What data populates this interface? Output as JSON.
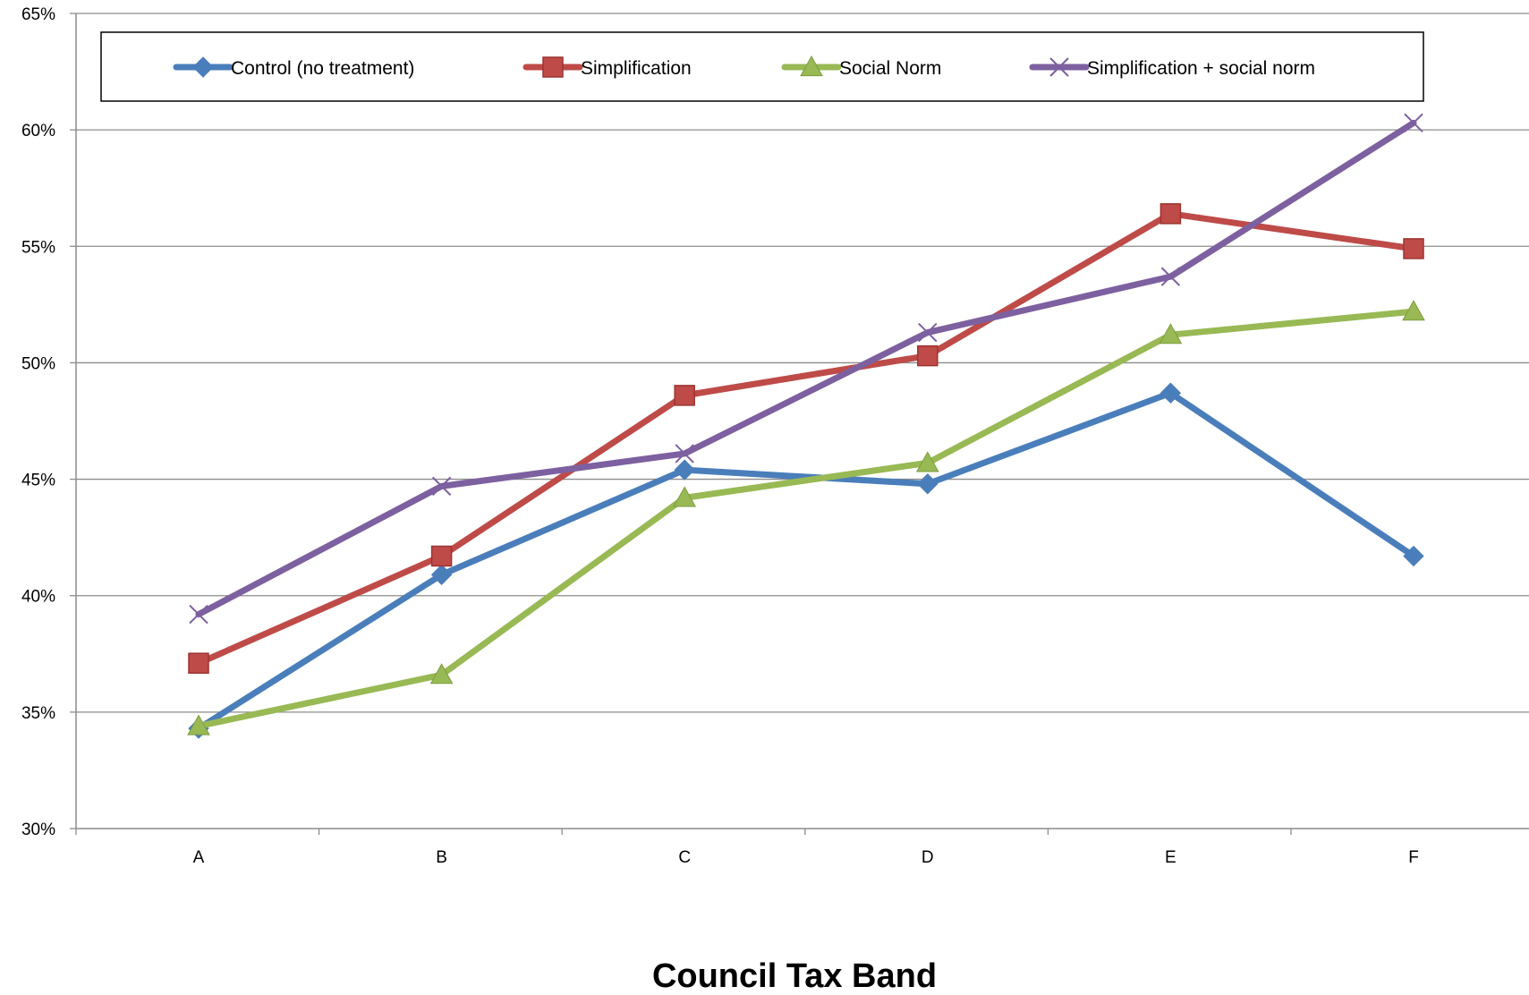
{
  "chart_data": {
    "type": "line",
    "title": "",
    "xlabel": "Council Tax Band",
    "ylabel": "",
    "categories": [
      "A",
      "B",
      "C",
      "D",
      "E",
      "F"
    ],
    "ylim": [
      0.3,
      0.65
    ],
    "yticks": [
      0.3,
      0.35,
      0.4,
      0.45,
      0.5,
      0.55,
      0.6,
      0.65
    ],
    "ytick_labels": [
      "30%",
      "35%",
      "40%",
      "45%",
      "50%",
      "55%",
      "60%",
      "65%"
    ],
    "grid": "horizontal",
    "legend_position": "top",
    "series": [
      {
        "name": "Control (no treatment)",
        "color": "#4a7ebb",
        "marker": "diamond",
        "values": [
          0.343,
          0.409,
          0.454,
          0.448,
          0.487,
          0.417
        ]
      },
      {
        "name": "Simplification",
        "color": "#be4b48",
        "marker": "square",
        "values": [
          0.371,
          0.417,
          0.486,
          0.503,
          0.564,
          0.549
        ]
      },
      {
        "name": "Social Norm",
        "color": "#98b954",
        "marker": "triangle",
        "values": [
          0.344,
          0.366,
          0.442,
          0.457,
          0.512,
          0.522
        ]
      },
      {
        "name": "Simplification + social norm",
        "color": "#7d60a0",
        "marker": "x",
        "values": [
          0.392,
          0.447,
          0.461,
          0.513,
          0.537,
          0.603
        ]
      }
    ]
  }
}
